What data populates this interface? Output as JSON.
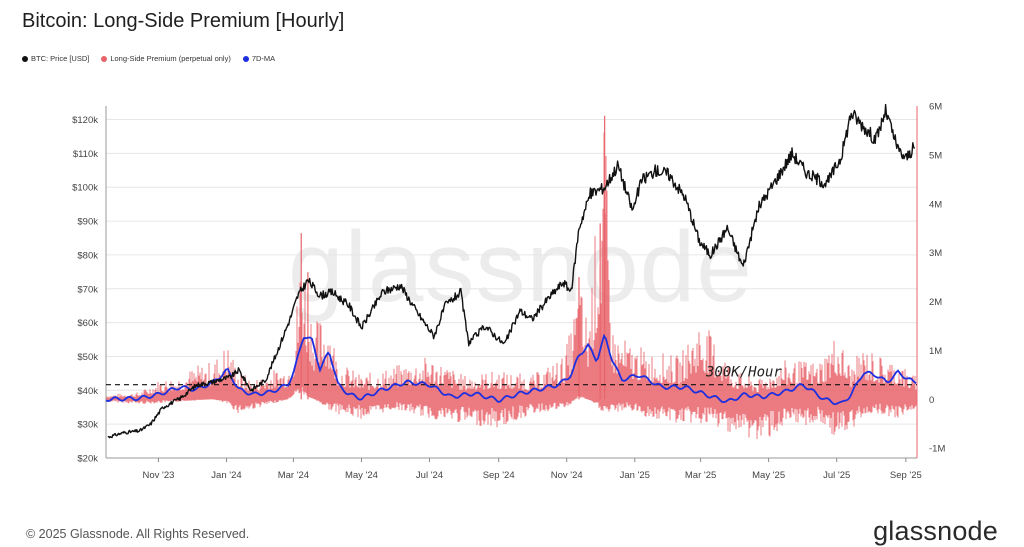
{
  "title": "Bitcoin: Long-Side Premium [Hourly]",
  "legend": [
    {
      "label": "BTC: Price [USD]",
      "color": "#111111"
    },
    {
      "label": "Long-Side Premium (perpetual only)",
      "color": "#e8646a"
    },
    {
      "label": "7D-MA",
      "color": "#1e2fe0"
    }
  ],
  "watermark": "glassnode",
  "footer": "© 2025 Glassnode. All Rights Reserved.",
  "brand": "glassnode",
  "colors": {
    "price": "#111111",
    "premium": "#e8646a",
    "ma": "#1e2fe0",
    "threshold": "#111111"
  },
  "chart_data": {
    "type": "line",
    "title": "Bitcoin: Long-Side Premium [Hourly]",
    "x_ticks": [
      "Nov '23",
      "Jan '24",
      "Mar '24",
      "May '24",
      "Jul '24",
      "Sep '24",
      "Nov '24",
      "Jan '25",
      "Mar '25",
      "May '25",
      "Jul '25",
      "Sep '25"
    ],
    "y_left": {
      "ticks": [
        "$20k",
        "$30k",
        "$40k",
        "$50k",
        "$60k",
        "$70k",
        "$80k",
        "$90k",
        "$100k",
        "$110k",
        "$120k"
      ],
      "range": [
        20000,
        124000
      ],
      "grid": true
    },
    "y_right": {
      "ticks": [
        "6M",
        "5M",
        "4M",
        "3M",
        "2M",
        "1M",
        "0",
        "-1M"
      ],
      "range": [
        -1200000,
        6000000
      ]
    },
    "annotation": {
      "text": "300K/Hour",
      "value": 300000,
      "style": "dashed"
    },
    "series": [
      {
        "name": "BTC: Price [USD]",
        "axis": "left",
        "type": "line",
        "x": [
          "2023-09-15",
          "2023-10-01",
          "2023-10-15",
          "2023-10-25",
          "2023-11-05",
          "2023-11-20",
          "2023-12-05",
          "2023-12-20",
          "2024-01-05",
          "2024-01-12",
          "2024-01-23",
          "2024-02-05",
          "2024-02-15",
          "2024-02-28",
          "2024-03-05",
          "2024-03-14",
          "2024-03-25",
          "2024-04-05",
          "2024-04-20",
          "2024-05-01",
          "2024-05-20",
          "2024-06-05",
          "2024-06-20",
          "2024-07-05",
          "2024-07-15",
          "2024-07-29",
          "2024-08-05",
          "2024-08-20",
          "2024-09-06",
          "2024-09-20",
          "2024-10-01",
          "2024-10-15",
          "2024-10-29",
          "2024-11-05",
          "2024-11-12",
          "2024-11-22",
          "2024-12-05",
          "2024-12-17",
          "2024-12-30",
          "2025-01-07",
          "2025-01-20",
          "2025-01-31",
          "2025-02-15",
          "2025-02-28",
          "2025-03-10",
          "2025-03-25",
          "2025-04-08",
          "2025-04-22",
          "2025-05-10",
          "2025-05-22",
          "2025-06-05",
          "2025-06-22",
          "2025-07-05",
          "2025-07-14",
          "2025-07-25",
          "2025-08-05",
          "2025-08-14",
          "2025-08-25",
          "2025-09-01",
          "2025-09-08"
        ],
        "values": [
          26000,
          27500,
          28000,
          30000,
          35000,
          37500,
          41500,
          42500,
          44000,
          46000,
          40000,
          43000,
          51000,
          62000,
          68000,
          72500,
          68000,
          69000,
          65000,
          58500,
          69000,
          71000,
          63000,
          56000,
          65000,
          69000,
          54000,
          59000,
          53500,
          63500,
          61000,
          67000,
          72000,
          69000,
          88000,
          98000,
          100000,
          106500,
          93000,
          102000,
          105000,
          104000,
          97000,
          84000,
          80000,
          88000,
          76500,
          94000,
          103500,
          110000,
          104000,
          101000,
          109000,
          122000,
          118000,
          114000,
          122500,
          111000,
          108500,
          111500
        ]
      },
      {
        "name": "7D-MA",
        "axis": "right",
        "type": "line",
        "x": [
          "2023-09-15",
          "2023-10-15",
          "2023-11-01",
          "2023-11-20",
          "2023-12-05",
          "2023-12-20",
          "2024-01-02",
          "2024-01-12",
          "2024-01-25",
          "2024-02-10",
          "2024-02-25",
          "2024-03-02",
          "2024-03-10",
          "2024-03-18",
          "2024-03-25",
          "2024-04-02",
          "2024-04-10",
          "2024-04-20",
          "2024-05-01",
          "2024-05-20",
          "2024-06-10",
          "2024-07-01",
          "2024-07-20",
          "2024-08-10",
          "2024-09-01",
          "2024-09-20",
          "2024-10-10",
          "2024-10-25",
          "2024-11-05",
          "2024-11-12",
          "2024-11-20",
          "2024-11-28",
          "2024-12-05",
          "2024-12-12",
          "2024-12-20",
          "2025-01-05",
          "2025-01-25",
          "2025-02-15",
          "2025-03-05",
          "2025-03-25",
          "2025-04-10",
          "2025-04-25",
          "2025-05-15",
          "2025-06-01",
          "2025-06-20",
          "2025-07-05",
          "2025-07-14",
          "2025-07-25",
          "2025-08-05",
          "2025-08-15",
          "2025-08-25",
          "2025-09-08"
        ],
        "values": [
          0,
          20000,
          100000,
          250000,
          200000,
          350000,
          600000,
          200000,
          100000,
          150000,
          300000,
          600000,
          1300000,
          1200000,
          600000,
          1000000,
          300000,
          100000,
          20000,
          200000,
          350000,
          300000,
          50000,
          120000,
          -20000,
          120000,
          220000,
          300000,
          500000,
          900000,
          1100000,
          800000,
          1300000,
          800000,
          400000,
          500000,
          250000,
          250000,
          100000,
          -50000,
          100000,
          50000,
          150000,
          300000,
          0,
          -100000,
          100000,
          550000,
          500000,
          350000,
          550000,
          350000
        ]
      }
    ],
    "premium_bars": {
      "name": "Long-Side Premium (perpetual only)",
      "axis": "right",
      "type": "bar",
      "note": "hourly bars shown as envelope",
      "x": [
        "2023-09-15",
        "2023-10-15",
        "2023-11-01",
        "2023-11-20",
        "2023-12-05",
        "2023-12-20",
        "2024-01-02",
        "2024-01-12",
        "2024-01-25",
        "2024-02-10",
        "2024-02-25",
        "2024-03-02",
        "2024-03-08",
        "2024-03-14",
        "2024-03-20",
        "2024-04-01",
        "2024-04-10",
        "2024-05-01",
        "2024-06-01",
        "2024-07-01",
        "2024-08-01",
        "2024-09-01",
        "2024-10-01",
        "2024-10-29",
        "2024-11-05",
        "2024-11-12",
        "2024-11-20",
        "2024-12-05",
        "2024-12-12",
        "2024-12-25",
        "2025-01-15",
        "2025-02-10",
        "2025-03-01",
        "2025-04-01",
        "2025-04-22",
        "2025-05-15",
        "2025-06-15",
        "2025-07-01",
        "2025-07-14",
        "2025-07-25",
        "2025-08-10",
        "2025-08-25",
        "2025-09-08"
      ],
      "high": [
        100000,
        150000,
        400000,
        500000,
        700000,
        800000,
        1200000,
        600000,
        400000,
        600000,
        700000,
        1400000,
        3400000,
        2500000,
        1600000,
        1900000,
        800000,
        500000,
        700000,
        900000,
        500000,
        600000,
        500000,
        900000,
        1500000,
        2500000,
        1700000,
        5800000,
        1500000,
        1200000,
        1000000,
        900000,
        1700000,
        600000,
        400000,
        800000,
        800000,
        1400000,
        700000,
        1100000,
        900000,
        800000,
        500000
      ],
      "low": [
        -50000,
        -100000,
        -80000,
        -50000,
        -20000,
        0,
        -100000,
        -300000,
        -200000,
        -100000,
        0,
        200000,
        300000,
        100000,
        0,
        -200000,
        -300000,
        -400000,
        -200000,
        -400000,
        -500000,
        -600000,
        -300000,
        -200000,
        -100000,
        100000,
        0,
        -300000,
        -300000,
        -200000,
        -400000,
        -500000,
        -500000,
        -700000,
        -900000,
        -600000,
        -500000,
        -800000,
        -700000,
        -300000,
        -300000,
        -400000,
        -200000
      ]
    }
  }
}
